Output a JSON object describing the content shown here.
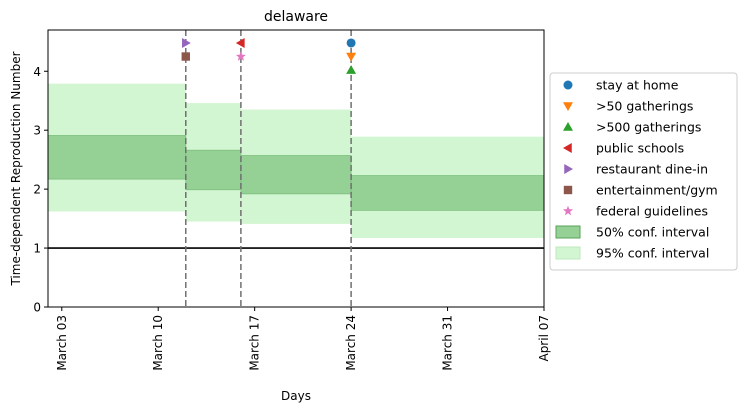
{
  "chart_data": {
    "type": "area",
    "title": "delaware",
    "xlabel": "Days",
    "ylabel": "Time-dependent Reproduction Number",
    "xlim": [
      "2020-03-02",
      "2020-04-07"
    ],
    "ylim": [
      0,
      4.7
    ],
    "yticks": [
      0,
      1,
      2,
      3,
      4
    ],
    "xticks": [
      {
        "date": "2020-03-03",
        "label": "March 03"
      },
      {
        "date": "2020-03-10",
        "label": "March 10"
      },
      {
        "date": "2020-03-17",
        "label": "March 17"
      },
      {
        "date": "2020-03-24",
        "label": "March 24"
      },
      {
        "date": "2020-03-31",
        "label": "March 31"
      },
      {
        "date": "2020-04-07",
        "label": "April 07"
      }
    ],
    "reference_line": {
      "y": 1,
      "color": "#000000"
    },
    "intervention_dates": [
      "2020-03-12",
      "2020-03-16",
      "2020-03-24"
    ],
    "segments": [
      {
        "start": "2020-03-02",
        "end": "2020-03-12",
        "ci50": [
          2.17,
          2.91
        ],
        "ci95": [
          1.62,
          3.79
        ]
      },
      {
        "start": "2020-03-12",
        "end": "2020-03-16",
        "ci50": [
          1.99,
          2.66
        ],
        "ci95": [
          1.45,
          3.46
        ]
      },
      {
        "start": "2020-03-16",
        "end": "2020-03-24",
        "ci50": [
          1.92,
          2.57
        ],
        "ci95": [
          1.41,
          3.35
        ]
      },
      {
        "start": "2020-03-24",
        "end": "2020-04-07",
        "ci50": [
          1.64,
          2.23
        ],
        "ci95": [
          1.17,
          2.89
        ]
      }
    ],
    "interventions": [
      {
        "name": "stay at home",
        "date": "2020-03-24",
        "y": 4.48,
        "marker": "circle",
        "color": "#1f77b4"
      },
      {
        "name": ">50 gatherings",
        "date": "2020-03-24",
        "y": 4.25,
        "marker": "triangle-down",
        "color": "#ff7f0e"
      },
      {
        "name": ">500 gatherings",
        "date": "2020-03-24",
        "y": 4.02,
        "marker": "triangle-up",
        "color": "#2ca02c"
      },
      {
        "name": "public schools",
        "date": "2020-03-16",
        "y": 4.48,
        "marker": "triangle-left",
        "color": "#d62728"
      },
      {
        "name": "restaurant dine-in",
        "date": "2020-03-12",
        "y": 4.48,
        "marker": "triangle-right",
        "color": "#9467bd"
      },
      {
        "name": "entertainment/gym",
        "date": "2020-03-12",
        "y": 4.25,
        "marker": "square",
        "color": "#8c564b"
      },
      {
        "name": "federal guidelines",
        "date": "2020-03-16",
        "y": 4.25,
        "marker": "star",
        "color": "#e377c2"
      }
    ],
    "legend": {
      "placement": "center-right",
      "entries": [
        {
          "label": "stay at home",
          "kind": "marker",
          "marker": "circle",
          "color": "#1f77b4"
        },
        {
          "label": ">50 gatherings",
          "kind": "marker",
          "marker": "triangle-down",
          "color": "#ff7f0e"
        },
        {
          "label": ">500 gatherings",
          "kind": "marker",
          "marker": "triangle-up",
          "color": "#2ca02c"
        },
        {
          "label": "public schools",
          "kind": "marker",
          "marker": "triangle-left",
          "color": "#d62728"
        },
        {
          "label": "restaurant dine-in",
          "kind": "marker",
          "marker": "triangle-right",
          "color": "#9467bd"
        },
        {
          "label": "entertainment/gym",
          "kind": "marker",
          "marker": "square",
          "color": "#8c564b"
        },
        {
          "label": "federal guidelines",
          "kind": "marker",
          "marker": "star",
          "color": "#e377c2"
        },
        {
          "label": "50% conf. interval",
          "kind": "patch",
          "color": "#95d095",
          "edge": "#5aa05a"
        },
        {
          "label": "95% conf. interval",
          "kind": "patch",
          "color": "#d2f5d2",
          "edge": "#bde9bd"
        }
      ]
    },
    "colors": {
      "ci50": "#95d095",
      "ci95": "#d2f5d2",
      "vline": "#707070",
      "axis": "#000000"
    }
  }
}
